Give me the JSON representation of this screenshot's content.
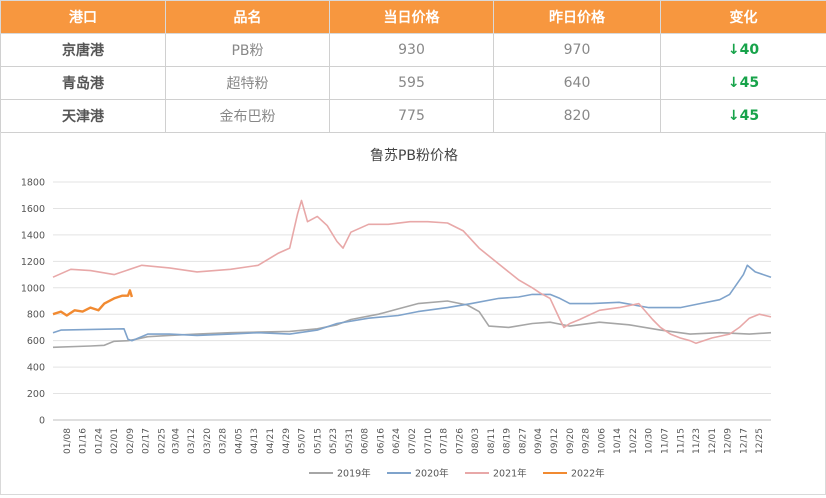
{
  "table": {
    "headers": [
      "港口",
      "品名",
      "当日价格",
      "昨日价格",
      "变化"
    ],
    "rows": [
      {
        "port": "京唐港",
        "product": "PB粉",
        "today": "930",
        "yesterday": "970",
        "change": "↓40"
      },
      {
        "port": "青岛港",
        "product": "超特粉",
        "today": "595",
        "yesterday": "640",
        "change": "↓45"
      },
      {
        "port": "天津港",
        "product": "金布巴粉",
        "today": "775",
        "yesterday": "820",
        "change": "↓45"
      }
    ]
  },
  "chart_data": {
    "type": "line",
    "title": "鲁苏PB粉价格",
    "ylim": [
      0,
      1800
    ],
    "yticks": [
      0,
      200,
      400,
      600,
      800,
      1000,
      1200,
      1400,
      1600,
      1800
    ],
    "grid": "horizontal",
    "legend": "bottom",
    "x_labels": [
      "01/08",
      "01/16",
      "01/24",
      "02/01",
      "02/09",
      "02/17",
      "02/25",
      "03/04",
      "03/12",
      "03/20",
      "03/28",
      "04/05",
      "04/13",
      "04/21",
      "04/29",
      "05/07",
      "05/15",
      "05/23",
      "05/31",
      "06/08",
      "06/16",
      "06/24",
      "07/02",
      "07/10",
      "07/18",
      "07/26",
      "08/03",
      "08/11",
      "08/19",
      "08/27",
      "09/04",
      "09/12",
      "09/20",
      "09/28",
      "10/06",
      "10/14",
      "10/22",
      "10/30",
      "11/07",
      "11/15",
      "11/23",
      "12/01",
      "12/09",
      "12/17",
      "12/25"
    ],
    "series": [
      {
        "name": "2019年",
        "color": "#a6a6a6",
        "x": [
          "01/01",
          "01/20",
          "01/27",
          "02/01",
          "02/08",
          "02/12",
          "02/18",
          "03/01",
          "03/15",
          "04/01",
          "04/15",
          "05/01",
          "05/15",
          "05/25",
          "06/01",
          "06/15",
          "06/25",
          "07/05",
          "07/20",
          "07/30",
          "08/05",
          "08/10",
          "08/20",
          "09/01",
          "09/10",
          "09/20",
          "10/05",
          "10/20",
          "11/05",
          "11/20",
          "12/05",
          "12/20",
          "12/31"
        ],
        "y": [
          550,
          560,
          565,
          595,
          600,
          610,
          630,
          640,
          650,
          660,
          665,
          670,
          690,
          720,
          760,
          800,
          840,
          880,
          900,
          870,
          820,
          710,
          700,
          730,
          740,
          710,
          740,
          720,
          680,
          650,
          660,
          650,
          660
        ]
      },
      {
        "name": "2020年",
        "color": "#7fa3cb",
        "x": [
          "01/01",
          "01/05",
          "02/06",
          "02/08",
          "02/10",
          "02/18",
          "03/01",
          "03/15",
          "04/01",
          "04/15",
          "05/01",
          "05/15",
          "05/25",
          "06/10",
          "06/25",
          "07/05",
          "07/20",
          "08/01",
          "08/15",
          "08/25",
          "09/01",
          "09/10",
          "09/15",
          "09/20",
          "10/01",
          "10/15",
          "10/30",
          "11/15",
          "11/25",
          "12/05",
          "12/10",
          "12/17",
          "12/19",
          "12/23",
          "12/31"
        ],
        "y": [
          660,
          680,
          690,
          610,
          600,
          650,
          650,
          640,
          650,
          660,
          650,
          680,
          730,
          770,
          790,
          820,
          850,
          880,
          920,
          930,
          950,
          950,
          920,
          880,
          880,
          890,
          850,
          850,
          880,
          910,
          950,
          1100,
          1170,
          1120,
          1080
        ]
      },
      {
        "name": "2021年",
        "color": "#e8a8a8",
        "x": [
          "01/01",
          "01/10",
          "01/20",
          "02/01",
          "02/15",
          "03/01",
          "03/15",
          "04/01",
          "04/15",
          "04/25",
          "05/01",
          "05/05",
          "05/07",
          "05/10",
          "05/15",
          "05/20",
          "05/25",
          "05/28",
          "06/01",
          "06/10",
          "06/20",
          "07/01",
          "07/10",
          "07/20",
          "07/28",
          "08/05",
          "08/15",
          "08/25",
          "09/01",
          "09/05",
          "09/10",
          "09/15",
          "09/17",
          "09/20",
          "09/25",
          "10/05",
          "10/15",
          "10/25",
          "11/01",
          "11/05",
          "11/10",
          "11/15",
          "11/20",
          "11/23",
          "12/01",
          "12/10",
          "12/15",
          "12/20",
          "12/25",
          "12/31"
        ],
        "y": [
          1080,
          1140,
          1130,
          1100,
          1170,
          1150,
          1120,
          1140,
          1170,
          1260,
          1300,
          1560,
          1660,
          1500,
          1540,
          1470,
          1350,
          1300,
          1420,
          1480,
          1480,
          1500,
          1500,
          1490,
          1430,
          1300,
          1180,
          1060,
          1000,
          960,
          920,
          760,
          700,
          730,
          760,
          830,
          850,
          880,
          760,
          700,
          650,
          620,
          600,
          580,
          620,
          650,
          700,
          770,
          800,
          780
        ]
      },
      {
        "name": "2022年",
        "color": "#f18a31",
        "x": [
          "01/01",
          "01/05",
          "01/08",
          "01/12",
          "01/16",
          "01/20",
          "01/24",
          "01/27",
          "02/01",
          "02/05",
          "02/08",
          "02/09",
          "02/10"
        ],
        "y": [
          800,
          820,
          790,
          830,
          820,
          850,
          830,
          880,
          920,
          940,
          940,
          980,
          930
        ]
      }
    ]
  }
}
